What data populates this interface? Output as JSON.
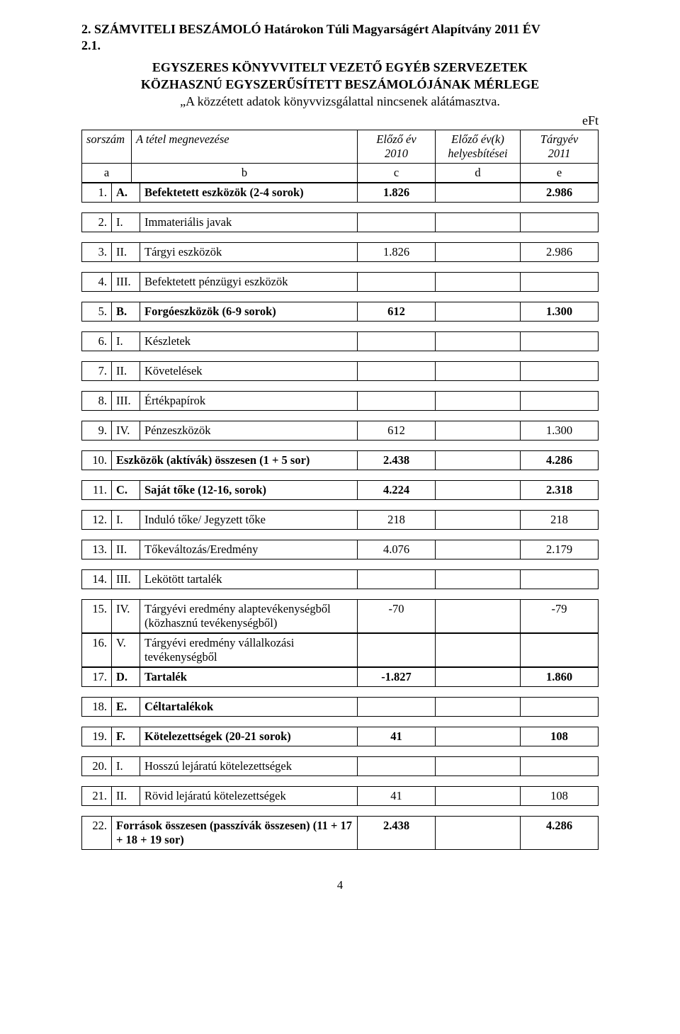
{
  "title_line1": "2. SZÁMVITELI BESZÁMOLÓ  Határokon Túli Magyarságért Alapítvány 2011 ÉV",
  "title_line2": "2.1.",
  "sub1": "EGYSZERES KÖNYVVITELT VEZETŐ EGYÉB SZERVEZETEK",
  "sub2": "KÖZHASZNÚ EGYSZERŰSÍTETT BESZÁMOLÓJÁNAK MÉRLEGE",
  "sub3": "„A közzétett adatok könyvvizsgálattal nincsenek alátámasztva.",
  "unit": "eFt",
  "hdr": {
    "h0": "sorszám",
    "h1": "A tétel megnevezése",
    "h2a": "Előző év",
    "h2b": "2010",
    "h3a": "Előző év(k)",
    "h3b": "helyesbítései",
    "h4a": "Tárgyév",
    "h4b": "2011",
    "a": "a",
    "b": "b",
    "c": "c",
    "d": "d",
    "e": "e"
  },
  "rows": [
    {
      "n": "1.",
      "cat": "A.",
      "name": "Befektetett eszközök (2-4 sorok)",
      "c": "1.826",
      "d": "",
      "e": "2.986",
      "bold": true
    },
    {
      "n": "2.",
      "cat": "I.",
      "name": "Immateriális javak",
      "c": "",
      "d": "",
      "e": ""
    },
    {
      "n": "3.",
      "cat": "II.",
      "name": "Tárgyi eszközök",
      "c": "1.826",
      "d": "",
      "e": "2.986"
    },
    {
      "n": "4.",
      "cat": "III.",
      "name": "Befektetett pénzügyi eszközök",
      "c": "",
      "d": "",
      "e": ""
    },
    {
      "n": "5.",
      "cat": "B.",
      "name": "Forgóeszközök (6-9 sorok)",
      "c": "612",
      "d": "",
      "e": "1.300",
      "bold": true
    },
    {
      "n": "6.",
      "cat": "I.",
      "name": "Készletek",
      "c": "",
      "d": "",
      "e": ""
    },
    {
      "n": "7.",
      "cat": "II.",
      "name": "Követelések",
      "c": "",
      "d": "",
      "e": ""
    },
    {
      "n": "8.",
      "cat": "III.",
      "name": "Értékpapírok",
      "c": "",
      "d": "",
      "e": ""
    },
    {
      "n": "9.",
      "cat": "IV.",
      "name": "Pénzeszközök",
      "c": "612",
      "d": "",
      "e": "1.300"
    },
    {
      "n": "10.",
      "cat": "",
      "name": "Eszközök (aktívák) összesen (1 + 5 sor)",
      "c": "2.438",
      "d": "",
      "e": "4.286",
      "bold": true,
      "merge": true
    },
    {
      "n": "11.",
      "cat": "C.",
      "name": "Saját tőke (12-16, sorok)",
      "c": "4.224",
      "d": "",
      "e": "2.318",
      "bold": true
    },
    {
      "n": "12.",
      "cat": "I.",
      "name": "Induló tőke/ Jegyzett tőke",
      "c": "218",
      "d": "",
      "e": "218"
    },
    {
      "n": "13.",
      "cat": "II.",
      "name": "Tőkeváltozás/Eredmény",
      "c": "4.076",
      "d": "",
      "e": "2.179"
    },
    {
      "n": "14.",
      "cat": "III.",
      "name": "Lekötött tartalék",
      "c": "",
      "d": "",
      "e": ""
    },
    {
      "n": "15.",
      "cat": "IV.",
      "name": "Tárgyévi eredmény alaptevékenységből (közhasznú tevékenységből)",
      "c": "-70",
      "d": "",
      "e": "-79",
      "noGapAfter": true
    },
    {
      "n": "16.",
      "cat": "V.",
      "name": "Tárgyévi eredmény vállalkozási tevékenységből",
      "c": "",
      "d": "",
      "e": "",
      "noGapAfter": true
    },
    {
      "n": "17.",
      "cat": "D.",
      "name": "Tartalék",
      "c": "-1.827",
      "d": "",
      "e": "1.860",
      "bold": true
    },
    {
      "n": "18.",
      "cat": "E.",
      "name": "Céltartalékok",
      "c": "",
      "d": "",
      "e": "",
      "bold": true
    },
    {
      "n": "19.",
      "cat": "F.",
      "name": "Kötelezettségek (20-21 sorok)",
      "c": "41",
      "d": "",
      "e": "108",
      "bold": true
    },
    {
      "n": "20.",
      "cat": "I.",
      "name": "Hosszú lejáratú kötelezettségek",
      "c": "",
      "d": "",
      "e": ""
    },
    {
      "n": "21.",
      "cat": "II.",
      "name": "Rövid lejáratú kötelezettségek",
      "c": "41",
      "d": "",
      "e": "108"
    },
    {
      "n": "22.",
      "cat": "",
      "name": "Források összesen (passzívák összesen) (11 + 17 + 18 + 19 sor)",
      "c": "2.438",
      "d": "",
      "e": "4.286",
      "bold": true,
      "merge": true
    }
  ],
  "page_number": "4"
}
